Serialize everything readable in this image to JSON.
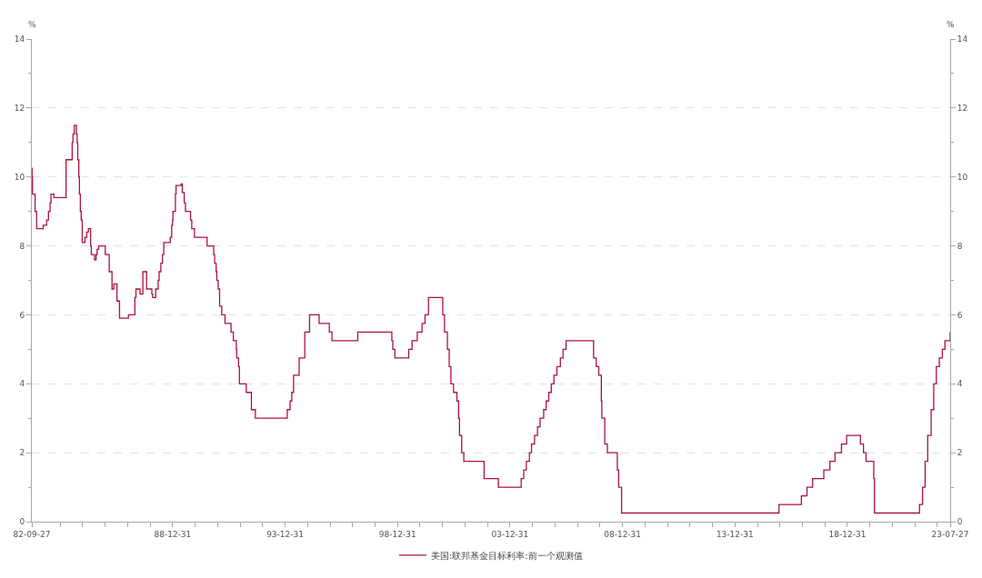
{
  "chart_data": {
    "type": "step",
    "ylabel": "%",
    "y2label": "%",
    "x": [
      "1982-09-27",
      "1982-10-01",
      "1982-10-07",
      "1982-11-19",
      "1982-12-14",
      "1983-03-31",
      "1983-05-25",
      "1983-06-24",
      "1983-07-20",
      "1983-08-04",
      "1983-09-20",
      "1984-04-05",
      "1984-07-13",
      "1984-07-27",
      "1984-08-17",
      "1984-09-20",
      "1984-10-02",
      "1984-10-11",
      "1984-10-29",
      "1984-11-08",
      "1984-11-23",
      "1984-12-07",
      "1984-12-24",
      "1985-02-06",
      "1985-03-07",
      "1985-04-02",
      "1985-05-08",
      "1985-05-20",
      "1985-07-11",
      "1985-08-06",
      "1985-08-22",
      "1985-09-16",
      "1986-01-02",
      "1986-03-07",
      "1986-04-21",
      "1986-05-20",
      "1986-07-11",
      "1986-08-21",
      "1987-01-13",
      "1987-04-27",
      "1987-05-15",
      "1987-07-21",
      "1987-09-04",
      "1987-11-04",
      "1988-01-28",
      "1988-02-11",
      "1988-03-30",
      "1988-05-09",
      "1988-05-25",
      "1988-06-22",
      "1988-07-19",
      "1988-08-09",
      "1988-11-22",
      "1988-12-15",
      "1988-12-29",
      "1989-01-05",
      "1989-02-14",
      "1989-02-24",
      "1989-05-17",
      "1989-06-06",
      "1989-07-07",
      "1989-07-27",
      "1989-10-18",
      "1989-11-06",
      "1989-12-20",
      "1990-07-13",
      "1990-10-29",
      "1990-11-13",
      "1990-12-07",
      "1990-12-18",
      "1991-01-09",
      "1991-02-01",
      "1991-03-08",
      "1991-04-30",
      "1991-08-06",
      "1991-09-13",
      "1991-10-31",
      "1991-11-06",
      "1991-12-06",
      "1991-12-20",
      "1992-04-09",
      "1992-07-02",
      "1992-09-04",
      "1994-02-04",
      "1994-03-22",
      "1994-04-18",
      "1994-05-17",
      "1994-08-16",
      "1994-11-15",
      "1995-02-01",
      "1995-07-06",
      "1995-12-19",
      "1996-01-31",
      "1997-03-25",
      "1998-09-29",
      "1998-10-15",
      "1998-11-17",
      "1999-06-30",
      "1999-08-24",
      "1999-11-16",
      "2000-02-02",
      "2000-03-21",
      "2000-05-16",
      "2001-01-03",
      "2001-01-31",
      "2001-03-20",
      "2001-04-18",
      "2001-05-15",
      "2001-06-27",
      "2001-08-21",
      "2001-09-17",
      "2001-10-02",
      "2001-11-06",
      "2001-12-11",
      "2002-11-06",
      "2003-06-25",
      "2004-06-30",
      "2004-08-10",
      "2004-09-21",
      "2004-11-10",
      "2004-12-14",
      "2005-02-02",
      "2005-03-22",
      "2005-05-03",
      "2005-06-30",
      "2005-08-09",
      "2005-09-20",
      "2005-11-01",
      "2005-12-13",
      "2006-01-31",
      "2006-03-28",
      "2006-05-10",
      "2006-06-29",
      "2007-09-18",
      "2007-10-31",
      "2007-12-11",
      "2008-01-22",
      "2008-01-30",
      "2008-03-18",
      "2008-04-30",
      "2008-10-08",
      "2008-10-29",
      "2008-12-16",
      "2015-12-16",
      "2016-12-14",
      "2017-03-15",
      "2017-06-14",
      "2017-12-13",
      "2018-03-21",
      "2018-06-13",
      "2018-09-26",
      "2018-12-19",
      "2019-07-31",
      "2019-09-18",
      "2019-10-30",
      "2020-03-03",
      "2020-03-15",
      "2022-03-16",
      "2022-05-04",
      "2022-06-15",
      "2022-07-27",
      "2022-09-21",
      "2022-11-02",
      "2022-12-14",
      "2023-02-01",
      "2023-03-22",
      "2023-05-03",
      "2023-07-27"
    ],
    "series": [
      {
        "name": "美国:联邦基金目标利率:前一个观测值",
        "color": "#a8153c",
        "values": [
          10.25,
          10,
          9.5,
          9,
          8.5,
          8.6,
          8.75,
          9,
          9.25,
          9.5,
          9.4,
          10.5,
          11,
          11.25,
          11.5,
          11.25,
          11,
          10.5,
          10,
          9.5,
          9,
          8.75,
          8.1,
          8.25,
          8.4,
          8.5,
          8,
          7.75,
          7.6,
          7.75,
          7.9,
          8,
          7.75,
          7.25,
          6.75,
          6.9,
          6.4,
          5.9,
          6,
          6.5,
          6.75,
          6.6,
          7.25,
          6.75,
          6.6,
          6.5,
          6.75,
          7,
          7.25,
          7.5,
          7.75,
          8.1,
          8.25,
          8.6,
          8.75,
          9,
          9.5,
          9.75,
          9.8,
          9.55,
          9.25,
          9,
          8.75,
          8.5,
          8.25,
          8,
          7.75,
          7.5,
          7.25,
          7,
          6.75,
          6.25,
          6,
          5.75,
          5.5,
          5.25,
          5,
          4.75,
          4.5,
          4,
          3.75,
          3.25,
          3,
          3.25,
          3.5,
          3.75,
          4.25,
          4.75,
          5.5,
          6,
          5.75,
          5.5,
          5.25,
          5.5,
          5.25,
          5,
          4.75,
          5,
          5.25,
          5.5,
          5.75,
          6,
          6.5,
          6,
          5.5,
          5,
          4.5,
          4,
          3.75,
          3.5,
          3,
          2.5,
          2,
          1.75,
          1.25,
          1,
          1.25,
          1.5,
          1.75,
          2,
          2.25,
          2.5,
          2.75,
          3,
          3.25,
          3.5,
          3.75,
          4,
          4.25,
          4.5,
          4.75,
          5,
          5.25,
          4.75,
          4.5,
          4.25,
          3.5,
          3,
          2.25,
          2,
          1.5,
          1,
          0.25,
          0.5,
          0.75,
          1,
          1.25,
          1.5,
          1.75,
          2,
          2.25,
          2.5,
          2.25,
          2,
          1.75,
          1.25,
          0.25,
          0.5,
          1,
          1.75,
          2.5,
          3.25,
          4,
          4.5,
          4.75,
          5,
          5.25,
          5.5
        ]
      }
    ],
    "xlim": [
      "1982-09-27",
      "2023-07-27"
    ],
    "xticks": [
      {
        "value": "1982-09-27",
        "label": "82-09-27"
      },
      {
        "value": "1983-12-31",
        "label": null
      },
      {
        "value": "1984-12-31",
        "label": null
      },
      {
        "value": "1985-12-31",
        "label": null
      },
      {
        "value": "1986-12-31",
        "label": null
      },
      {
        "value": "1987-12-31",
        "label": null
      },
      {
        "value": "1988-12-31",
        "label": "88-12-31"
      },
      {
        "value": "1989-12-31",
        "label": null
      },
      {
        "value": "1990-12-31",
        "label": null
      },
      {
        "value": "1991-12-31",
        "label": null
      },
      {
        "value": "1992-12-31",
        "label": null
      },
      {
        "value": "1993-12-31",
        "label": "93-12-31"
      },
      {
        "value": "1994-12-31",
        "label": null
      },
      {
        "value": "1995-12-31",
        "label": null
      },
      {
        "value": "1996-12-31",
        "label": null
      },
      {
        "value": "1997-12-31",
        "label": null
      },
      {
        "value": "1998-12-31",
        "label": "98-12-31"
      },
      {
        "value": "1999-12-31",
        "label": null
      },
      {
        "value": "2000-12-31",
        "label": null
      },
      {
        "value": "2001-12-31",
        "label": null
      },
      {
        "value": "2002-12-31",
        "label": null
      },
      {
        "value": "2003-12-31",
        "label": "03-12-31"
      },
      {
        "value": "2004-12-31",
        "label": null
      },
      {
        "value": "2005-12-31",
        "label": null
      },
      {
        "value": "2006-12-31",
        "label": null
      },
      {
        "value": "2007-12-31",
        "label": null
      },
      {
        "value": "2008-12-31",
        "label": "08-12-31"
      },
      {
        "value": "2009-12-31",
        "label": null
      },
      {
        "value": "2010-12-31",
        "label": null
      },
      {
        "value": "2011-12-31",
        "label": null
      },
      {
        "value": "2012-12-31",
        "label": null
      },
      {
        "value": "2013-12-31",
        "label": "13-12-31"
      },
      {
        "value": "2014-12-31",
        "label": null
      },
      {
        "value": "2015-12-31",
        "label": null
      },
      {
        "value": "2016-12-31",
        "label": null
      },
      {
        "value": "2017-12-31",
        "label": null
      },
      {
        "value": "2018-12-31",
        "label": "18-12-31"
      },
      {
        "value": "2019-12-31",
        "label": null
      },
      {
        "value": "2020-12-31",
        "label": null
      },
      {
        "value": "2021-12-31",
        "label": null
      },
      {
        "value": "2022-12-31",
        "label": null
      },
      {
        "value": "2023-07-27",
        "label": "23-07-27"
      }
    ],
    "ylim": [
      0,
      14
    ],
    "yticks": [
      0,
      {
        "value": 1,
        "label": null
      },
      2,
      {
        "value": 3,
        "label": null
      },
      4,
      {
        "value": 5,
        "label": null
      },
      6,
      {
        "value": 7,
        "label": null
      },
      8,
      {
        "value": 9,
        "label": null
      },
      10,
      {
        "value": 11,
        "label": null
      },
      12,
      {
        "value": 13,
        "label": null
      },
      14
    ],
    "y2lim": [
      0,
      14
    ],
    "y2ticks": [
      0,
      {
        "value": 1,
        "label": null
      },
      2,
      {
        "value": 3,
        "label": null
      },
      4,
      {
        "value": 5,
        "label": null
      },
      6,
      {
        "value": 7,
        "label": null
      },
      8,
      {
        "value": 9,
        "label": null
      },
      10,
      {
        "value": 11,
        "label": null
      },
      12,
      {
        "value": 13,
        "label": null
      },
      14
    ],
    "grid": "y",
    "legend": "bottom",
    "line_style": "solid"
  }
}
